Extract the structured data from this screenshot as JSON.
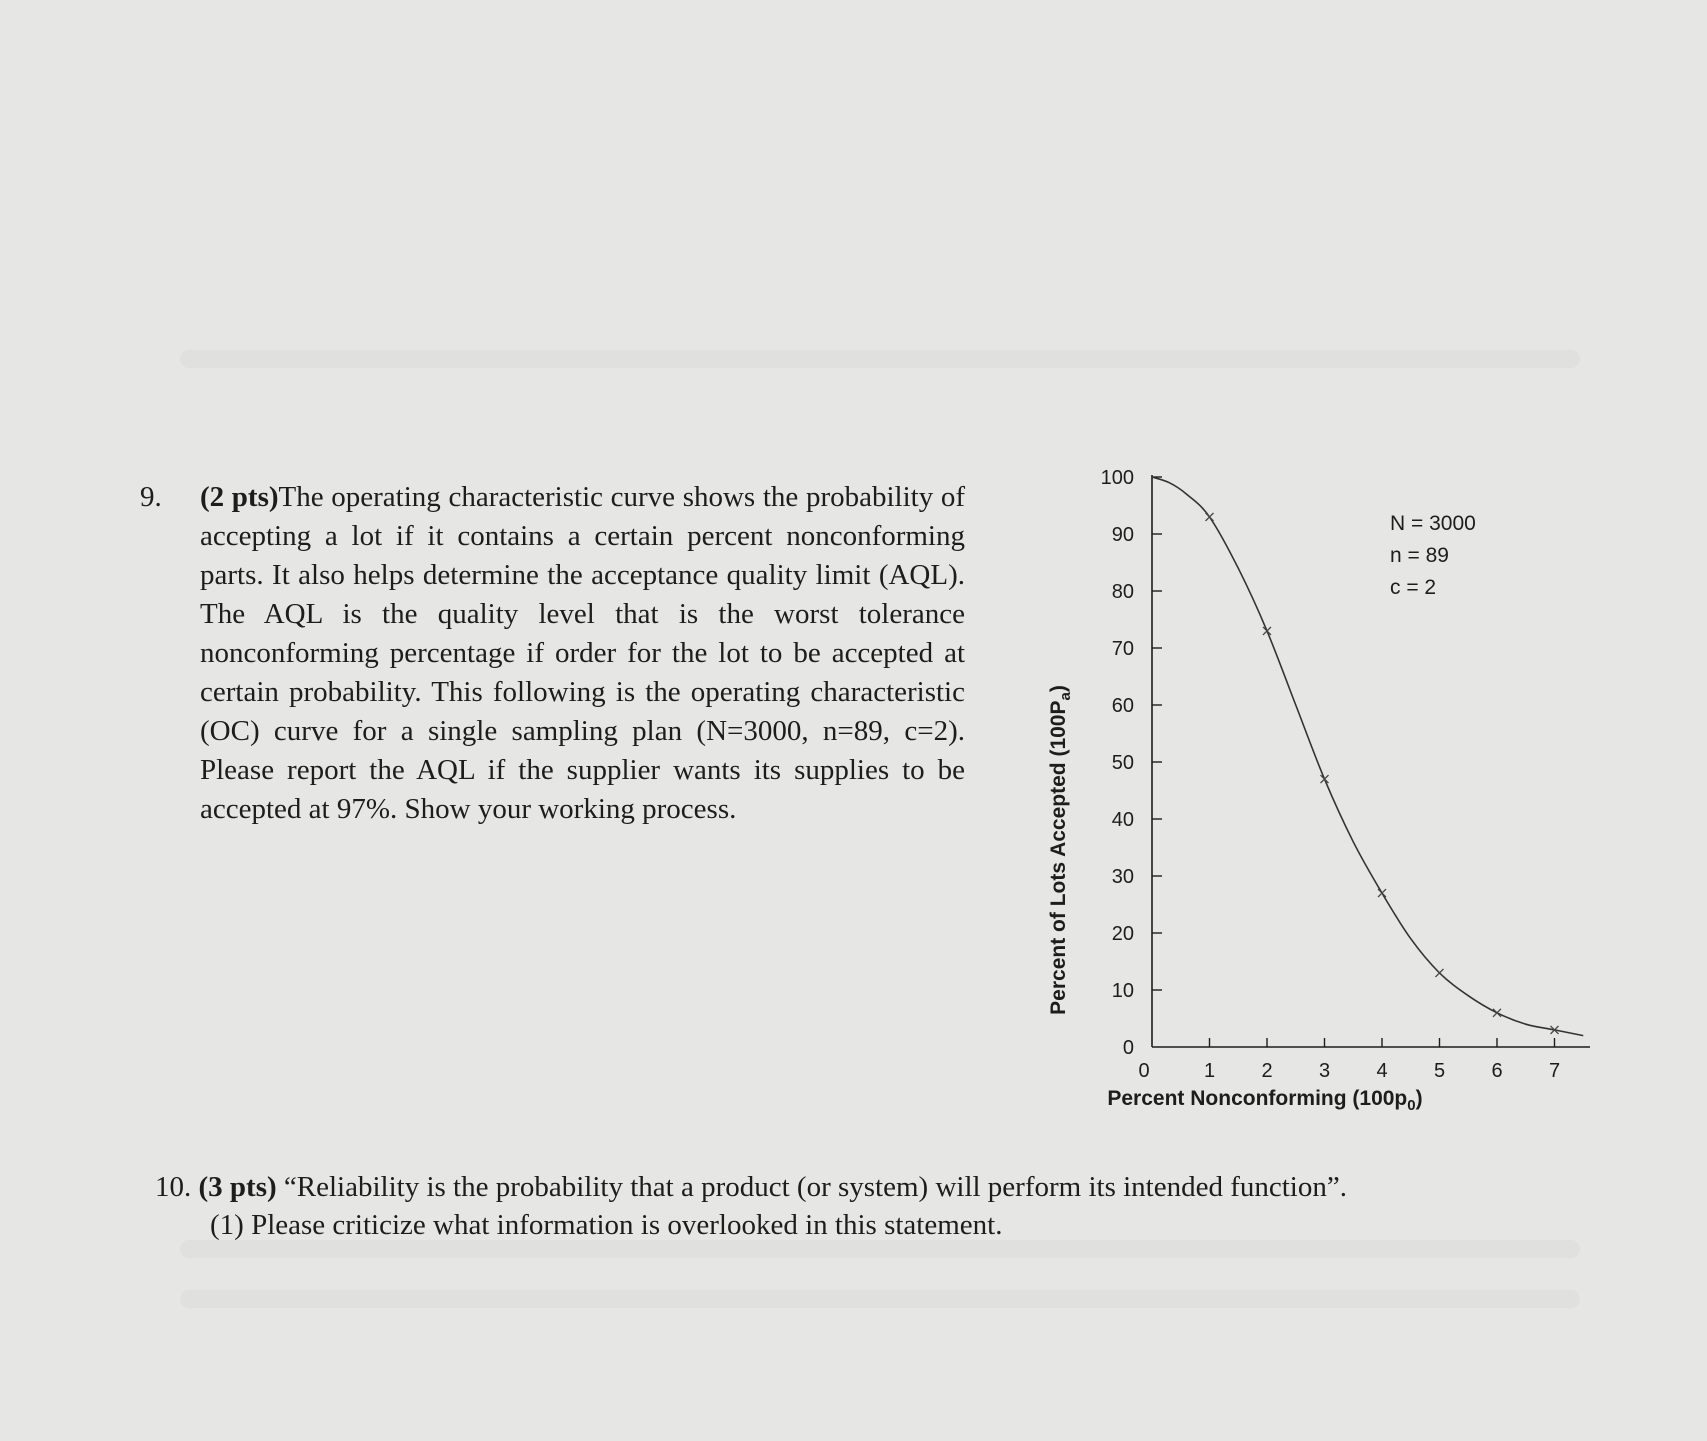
{
  "question9": {
    "number": "9.",
    "points": "(2 pts)",
    "text": "The operating characteristic curve shows the probability of accepting a lot if it contains a certain percent nonconforming parts. It also helps determine the acceptance quality limit (AQL). The AQL is the quality level that is the worst tolerance nonconforming percentage if order for the lot to be accepted at certain probability. This following is the operating characteristic (OC) curve for a single sampling plan (N=3000, n=89, c=2). Please report the AQL if the supplier wants its supplies to be accepted at 97%. Show your working process."
  },
  "question10": {
    "number": "10.",
    "points": "(3 pts)",
    "text": "“Reliability is the probability that a product (or system) will perform its intended function”.",
    "sub1": "(1) Please criticize what information is overlooked in this statement."
  },
  "chart_data": {
    "type": "line",
    "xlabel": "Percent Nonconforming (100p",
    "xlabel_sub": "0",
    "ylabel": "Percent of Lots Accepted (100P",
    "ylabel_sub": "a",
    "xlim": [
      0,
      7.5
    ],
    "ylim": [
      0,
      100
    ],
    "x_ticks": [
      "0",
      "1",
      "2",
      "3",
      "4",
      "5",
      "6",
      "7"
    ],
    "y_ticks": [
      "0",
      "10",
      "20",
      "30",
      "40",
      "50",
      "60",
      "70",
      "80",
      "90",
      "100"
    ],
    "annotations": [
      "N = 3000",
      "n = 89",
      "c = 2"
    ],
    "curve": {
      "x": [
        0,
        0.3,
        0.6,
        1.0,
        1.5,
        2.0,
        2.5,
        3.0,
        3.5,
        4.0,
        4.5,
        5.0,
        5.5,
        6.0,
        6.5,
        7.0,
        7.5
      ],
      "y": [
        100,
        99,
        97,
        93,
        84,
        73,
        60,
        47,
        36,
        27,
        19,
        13,
        9,
        6,
        4,
        3,
        2
      ]
    },
    "markers": {
      "x": [
        1,
        2,
        3,
        4,
        5,
        6,
        7
      ],
      "y": [
        93,
        73,
        47,
        27,
        13,
        6,
        3
      ]
    },
    "grid": false,
    "colors": {
      "line": "#333333",
      "axis": "#1d1d1d"
    }
  }
}
